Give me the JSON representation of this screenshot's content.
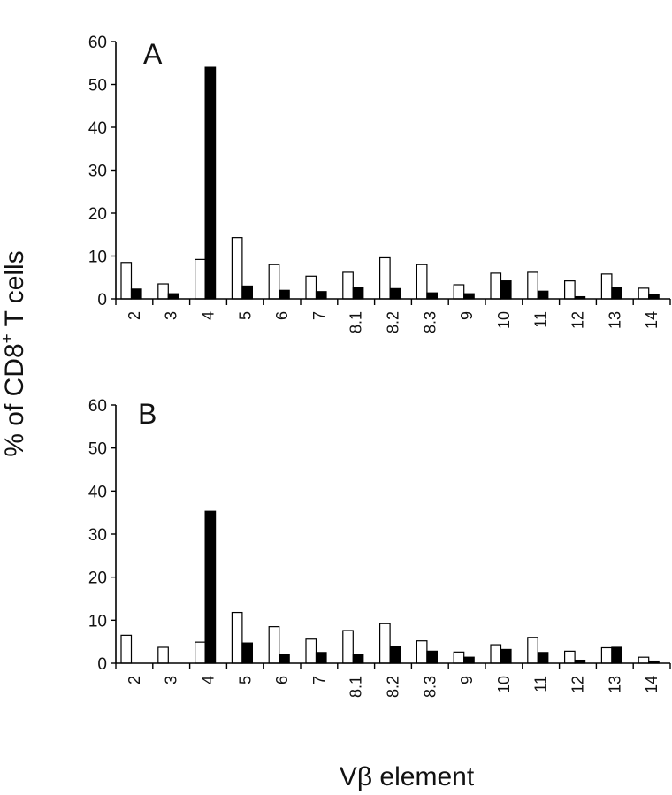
{
  "figure": {
    "ylabel": "% of CD8+ T cells",
    "ylabel_main": "% of CD8",
    "ylabel_sup": "+",
    "ylabel_tail": " T cells",
    "xlabel": "Vβ element"
  },
  "chart_data": [
    {
      "type": "bar",
      "panel_label": "A",
      "categories": [
        "2",
        "3",
        "4",
        "5",
        "6",
        "7",
        "8.1",
        "8.2",
        "8.3",
        "9",
        "10",
        "11",
        "12",
        "13",
        "14"
      ],
      "series": [
        {
          "color": "#ffffff",
          "values": [
            8.5,
            3.5,
            9.2,
            14.3,
            8.0,
            5.3,
            6.2,
            9.6,
            8.0,
            3.3,
            6.0,
            6.2,
            4.2,
            5.8,
            2.5
          ]
        },
        {
          "color": "#000000",
          "values": [
            2.3,
            1.2,
            54.0,
            3.0,
            2.0,
            1.7,
            2.7,
            2.4,
            1.4,
            1.2,
            4.2,
            1.8,
            0.5,
            2.7,
            1.0
          ]
        }
      ],
      "yticks": [
        0,
        10,
        20,
        30,
        40,
        50,
        60
      ],
      "ylim": [
        0,
        60
      ],
      "xlabel": "Vβ element",
      "ylabel": "% of CD8+ T cells",
      "grid": false
    },
    {
      "type": "bar",
      "panel_label": "B",
      "categories": [
        "2",
        "3",
        "4",
        "5",
        "6",
        "7",
        "8.1",
        "8.2",
        "8.3",
        "9",
        "10",
        "11",
        "12",
        "13",
        "14"
      ],
      "series": [
        {
          "color": "#ffffff",
          "values": [
            6.5,
            3.7,
            4.9,
            11.8,
            8.5,
            5.6,
            7.6,
            9.2,
            5.2,
            2.6,
            4.3,
            6.0,
            2.8,
            3.6,
            1.4
          ]
        },
        {
          "color": "#000000",
          "values": [
            0.0,
            0.0,
            35.3,
            4.7,
            2.0,
            2.5,
            2.0,
            3.8,
            2.8,
            1.4,
            3.2,
            2.5,
            0.7,
            3.7,
            0.5
          ]
        }
      ],
      "yticks": [
        0,
        10,
        20,
        30,
        40,
        50,
        60
      ],
      "ylim": [
        0,
        60
      ],
      "xlabel": "Vβ element",
      "ylabel": "% of CD8+ T cells",
      "grid": false
    }
  ]
}
